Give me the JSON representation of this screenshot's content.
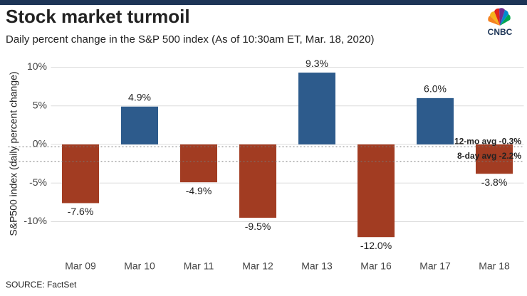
{
  "chart_data": {
    "type": "bar",
    "title": "Stock market turmoil",
    "subtitle": "Daily percent change in the S&P 500 index (As of 10:30am ET,  Mar. 18, 2020)",
    "logo": "CNBC",
    "y_label": "S&P500 index (daily percent change)",
    "source": "SOURCE: FactSet",
    "categories": [
      "Mar 09",
      "Mar 10",
      "Mar 11",
      "Mar 12",
      "Mar 13",
      "Mar 16",
      "Mar 17",
      "Mar 18"
    ],
    "values": [
      -7.6,
      4.9,
      -4.9,
      -9.5,
      9.3,
      -12.0,
      6.0,
      -3.8
    ],
    "value_labels": [
      "-7.6%",
      "4.9%",
      "-4.9%",
      "-9.5%",
      "9.3%",
      "-12.0%",
      "6.0%",
      "-3.8%"
    ],
    "positive_color": "#2d5b8c",
    "negative_color": "#a23c22",
    "ylim": [
      -13.5,
      11
    ],
    "yticks": [
      {
        "value": -10,
        "label": "-10%"
      },
      {
        "value": -5,
        "label": "-5%"
      },
      {
        "value": 0,
        "label": "0%"
      },
      {
        "value": 5,
        "label": "5%"
      },
      {
        "value": 10,
        "label": "10%"
      }
    ],
    "reference_lines": [
      {
        "value": -0.3,
        "label": "12-mo avg -0.3%"
      },
      {
        "value": -2.2,
        "label": "8-day avg -2.2%"
      }
    ]
  }
}
